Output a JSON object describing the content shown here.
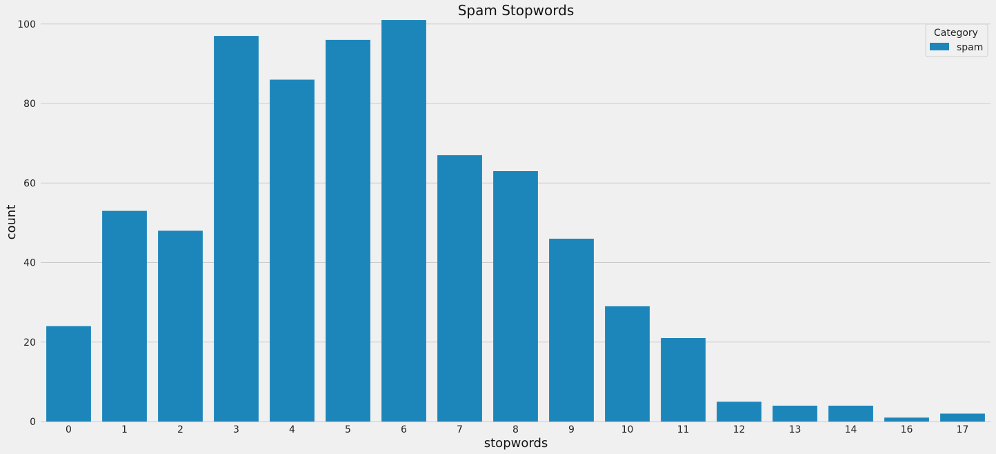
{
  "chart_data": {
    "type": "bar",
    "title": "Spam Stopwords",
    "xlabel": "stopwords",
    "ylabel": "count",
    "categories": [
      "0",
      "1",
      "2",
      "3",
      "4",
      "5",
      "6",
      "7",
      "8",
      "9",
      "10",
      "11",
      "12",
      "13",
      "14",
      "16",
      "17"
    ],
    "series": [
      {
        "name": "spam",
        "values": [
          24,
          53,
          48,
          97,
          86,
          96,
          101,
          67,
          63,
          46,
          29,
          21,
          5,
          4,
          4,
          1,
          2
        ]
      }
    ],
    "ylim": [
      0,
      105
    ],
    "yticks": [
      0,
      20,
      40,
      60,
      80,
      100
    ],
    "grid": "horizontal",
    "legend": {
      "title": "Category",
      "position": "top-right"
    },
    "colors": {
      "bar": "#1c86bb",
      "background": "#f0f0f0",
      "grid": "#cbcbcb",
      "text": "#222222"
    }
  }
}
